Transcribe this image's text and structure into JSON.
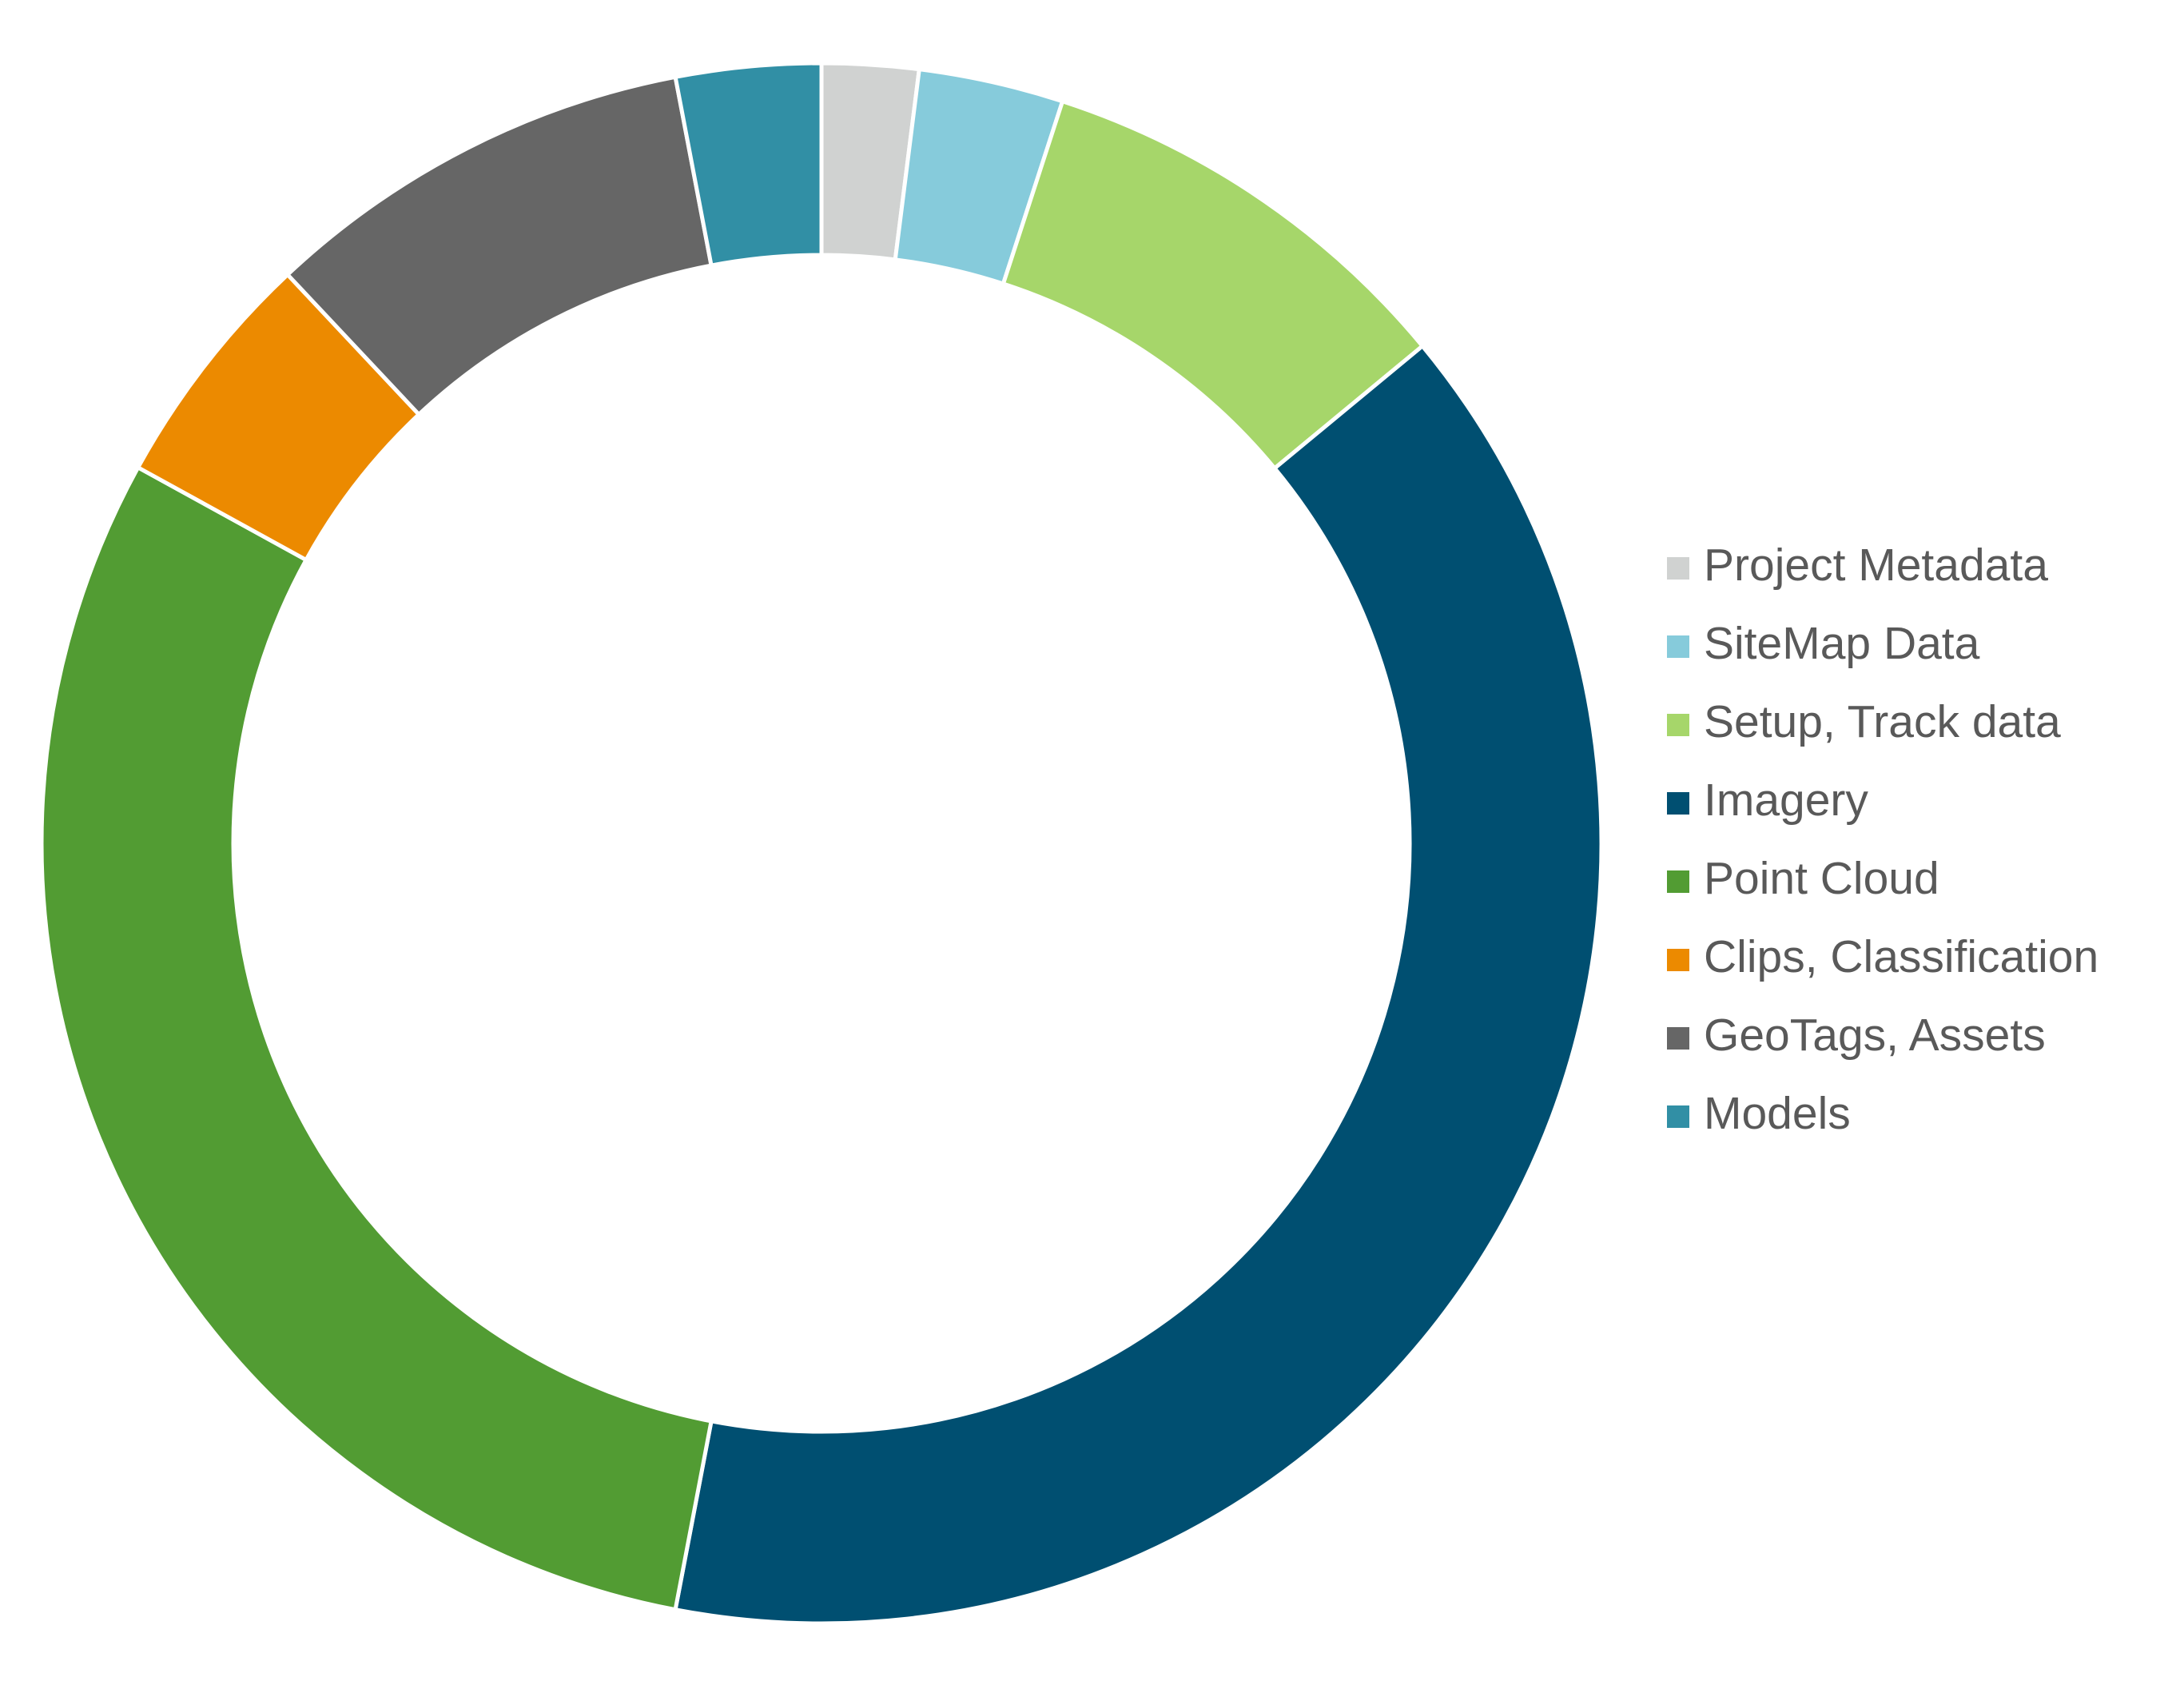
{
  "chart_data": {
    "type": "donut",
    "categories": [
      "Project Metadata",
      "SiteMap Data",
      "Setup, Track data",
      "Imagery",
      "Point Cloud",
      "Clips, Classification",
      "GeoTags, Assets",
      "Models"
    ],
    "values": [
      2,
      3,
      9,
      39,
      30,
      5,
      9,
      3
    ],
    "colors": [
      "#d0d2d1",
      "#86cbdb",
      "#a6d66a",
      "#004f71",
      "#529c33",
      "#ec8a00",
      "#666666",
      "#318fa5"
    ],
    "legend": "right"
  }
}
